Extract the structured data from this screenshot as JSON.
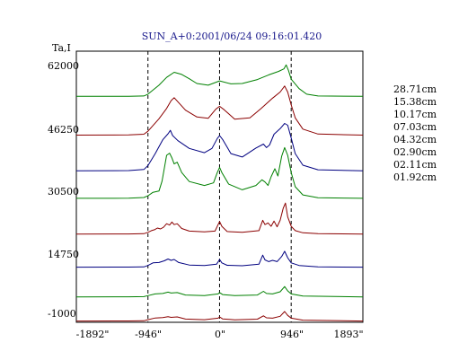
{
  "chart_data": {
    "type": "line",
    "title": "SUN_A+0:2001/06/24 09:16:01.420",
    "ylabel": "Ta,I",
    "xlabel": "",
    "x_ticks": [
      "-1892\"",
      "-946\"",
      "0\"",
      "946\"",
      "1893\""
    ],
    "y_ticks": [
      "62000",
      "46250",
      "30500",
      "14750",
      "-1000"
    ],
    "xlim": [
      -1892,
      1893
    ],
    "ylim": [
      -1000,
      62000
    ],
    "vertical_markers": [
      -946,
      0,
      946
    ],
    "grid": false,
    "legend_position": "right",
    "series": [
      {
        "name": "28.71cm",
        "color": "#008000",
        "baseline": 51500,
        "points": [
          [
            -1892,
            0
          ],
          [
            -1200,
            30
          ],
          [
            -1000,
            90
          ],
          [
            -946,
            500
          ],
          [
            -800,
            2600
          ],
          [
            -700,
            4400
          ],
          [
            -600,
            5600
          ],
          [
            -500,
            5100
          ],
          [
            -400,
            4100
          ],
          [
            -300,
            3000
          ],
          [
            -150,
            2600
          ],
          [
            0,
            3600
          ],
          [
            150,
            2900
          ],
          [
            300,
            3000
          ],
          [
            500,
            3900
          ],
          [
            650,
            5000
          ],
          [
            780,
            5800
          ],
          [
            850,
            6400
          ],
          [
            880,
            7300
          ],
          [
            910,
            6000
          ],
          [
            946,
            4000
          ],
          [
            1050,
            1800
          ],
          [
            1150,
            500
          ],
          [
            1300,
            100
          ],
          [
            1893,
            0
          ]
        ]
      },
      {
        "name": "15.38cm",
        "color": "#8b0000",
        "baseline": 42500,
        "points": [
          [
            -1892,
            0
          ],
          [
            -1200,
            40
          ],
          [
            -1000,
            200
          ],
          [
            -946,
            900
          ],
          [
            -800,
            3800
          ],
          [
            -700,
            6200
          ],
          [
            -640,
            8000
          ],
          [
            -600,
            8700
          ],
          [
            -560,
            7900
          ],
          [
            -450,
            5800
          ],
          [
            -300,
            4200
          ],
          [
            -150,
            3900
          ],
          [
            -50,
            6000
          ],
          [
            0,
            6700
          ],
          [
            60,
            5900
          ],
          [
            200,
            3700
          ],
          [
            400,
            4000
          ],
          [
            550,
            6200
          ],
          [
            700,
            8600
          ],
          [
            800,
            10000
          ],
          [
            860,
            11400
          ],
          [
            900,
            10000
          ],
          [
            946,
            7000
          ],
          [
            1000,
            4000
          ],
          [
            1100,
            1400
          ],
          [
            1300,
            250
          ],
          [
            1893,
            0
          ]
        ]
      },
      {
        "name": "10.17cm",
        "color": "#000080",
        "baseline": 34200,
        "points": [
          [
            -1892,
            0
          ],
          [
            -1200,
            50
          ],
          [
            -1000,
            300
          ],
          [
            -946,
            1200
          ],
          [
            -850,
            4000
          ],
          [
            -750,
            7200
          ],
          [
            -680,
            8600
          ],
          [
            -650,
            9400
          ],
          [
            -620,
            8200
          ],
          [
            -550,
            7000
          ],
          [
            -400,
            5200
          ],
          [
            -200,
            4200
          ],
          [
            -100,
            5200
          ],
          [
            -30,
            7500
          ],
          [
            0,
            8200
          ],
          [
            40,
            7300
          ],
          [
            150,
            4000
          ],
          [
            300,
            3200
          ],
          [
            480,
            5300
          ],
          [
            580,
            6200
          ],
          [
            620,
            5400
          ],
          [
            660,
            6000
          ],
          [
            720,
            8500
          ],
          [
            800,
            9800
          ],
          [
            860,
            11000
          ],
          [
            900,
            10600
          ],
          [
            946,
            7600
          ],
          [
            1000,
            4000
          ],
          [
            1100,
            1300
          ],
          [
            1300,
            250
          ],
          [
            1893,
            0
          ]
        ]
      },
      {
        "name": "07.03cm",
        "color": "#008000",
        "baseline": 27800,
        "points": [
          [
            -1892,
            0
          ],
          [
            -1200,
            40
          ],
          [
            -1000,
            200
          ],
          [
            -946,
            600
          ],
          [
            -880,
            1400
          ],
          [
            -800,
            1700
          ],
          [
            -760,
            4000
          ],
          [
            -700,
            10000
          ],
          [
            -660,
            10500
          ],
          [
            -630,
            9400
          ],
          [
            -600,
            8000
          ],
          [
            -560,
            8400
          ],
          [
            -500,
            6000
          ],
          [
            -400,
            3900
          ],
          [
            -200,
            3000
          ],
          [
            -80,
            3600
          ],
          [
            -30,
            6000
          ],
          [
            0,
            7200
          ],
          [
            30,
            6000
          ],
          [
            120,
            3300
          ],
          [
            300,
            2000
          ],
          [
            480,
            3000
          ],
          [
            560,
            4300
          ],
          [
            600,
            3800
          ],
          [
            640,
            3000
          ],
          [
            680,
            5000
          ],
          [
            730,
            6900
          ],
          [
            770,
            5200
          ],
          [
            820,
            9800
          ],
          [
            860,
            11800
          ],
          [
            900,
            10000
          ],
          [
            946,
            6000
          ],
          [
            1000,
            2700
          ],
          [
            1100,
            800
          ],
          [
            1300,
            150
          ],
          [
            1893,
            0
          ]
        ]
      },
      {
        "name": "04.32cm",
        "color": "#8b0000",
        "baseline": 19500,
        "points": [
          [
            -1892,
            0
          ],
          [
            -1200,
            30
          ],
          [
            -1000,
            100
          ],
          [
            -946,
            400
          ],
          [
            -900,
            800
          ],
          [
            -860,
            1000
          ],
          [
            -820,
            1400
          ],
          [
            -780,
            1200
          ],
          [
            -740,
            1600
          ],
          [
            -700,
            2400
          ],
          [
            -660,
            2100
          ],
          [
            -630,
            2800
          ],
          [
            -600,
            2200
          ],
          [
            -560,
            2400
          ],
          [
            -500,
            1300
          ],
          [
            -400,
            700
          ],
          [
            -200,
            500
          ],
          [
            -60,
            700
          ],
          [
            -20,
            2200
          ],
          [
            0,
            2900
          ],
          [
            30,
            1800
          ],
          [
            100,
            600
          ],
          [
            300,
            400
          ],
          [
            520,
            800
          ],
          [
            570,
            3200
          ],
          [
            600,
            2200
          ],
          [
            640,
            2600
          ],
          [
            680,
            1800
          ],
          [
            720,
            3000
          ],
          [
            760,
            1700
          ],
          [
            800,
            3200
          ],
          [
            840,
            6000
          ],
          [
            870,
            7200
          ],
          [
            900,
            4000
          ],
          [
            946,
            1800
          ],
          [
            1000,
            800
          ],
          [
            1100,
            300
          ],
          [
            1300,
            80
          ],
          [
            1893,
            0
          ]
        ]
      },
      {
        "name": "02.90cm",
        "color": "#000080",
        "baseline": 11800,
        "points": [
          [
            -1892,
            0
          ],
          [
            -1200,
            20
          ],
          [
            -1000,
            80
          ],
          [
            -946,
            400
          ],
          [
            -880,
            1000
          ],
          [
            -800,
            1100
          ],
          [
            -730,
            1500
          ],
          [
            -680,
            1900
          ],
          [
            -640,
            1600
          ],
          [
            -600,
            1800
          ],
          [
            -540,
            1100
          ],
          [
            -400,
            500
          ],
          [
            -200,
            380
          ],
          [
            -40,
            700
          ],
          [
            -10,
            1500
          ],
          [
            0,
            1800
          ],
          [
            30,
            1000
          ],
          [
            100,
            450
          ],
          [
            300,
            350
          ],
          [
            520,
            700
          ],
          [
            570,
            2800
          ],
          [
            600,
            1700
          ],
          [
            650,
            1300
          ],
          [
            700,
            1600
          ],
          [
            760,
            1300
          ],
          [
            820,
            2500
          ],
          [
            860,
            3700
          ],
          [
            900,
            2200
          ],
          [
            946,
            1000
          ],
          [
            1050,
            400
          ],
          [
            1300,
            80
          ],
          [
            1893,
            0
          ]
        ]
      },
      {
        "name": "02.11cm",
        "color": "#008000",
        "baseline": 4900,
        "points": [
          [
            -1892,
            0
          ],
          [
            -1200,
            20
          ],
          [
            -1000,
            60
          ],
          [
            -946,
            300
          ],
          [
            -850,
            700
          ],
          [
            -750,
            800
          ],
          [
            -680,
            1100
          ],
          [
            -640,
            900
          ],
          [
            -560,
            1000
          ],
          [
            -450,
            450
          ],
          [
            -200,
            300
          ],
          [
            -20,
            700
          ],
          [
            0,
            1000
          ],
          [
            40,
            550
          ],
          [
            200,
            300
          ],
          [
            500,
            450
          ],
          [
            580,
            1300
          ],
          [
            620,
            800
          ],
          [
            700,
            700
          ],
          [
            800,
            1200
          ],
          [
            860,
            2400
          ],
          [
            900,
            1400
          ],
          [
            946,
            700
          ],
          [
            1100,
            200
          ],
          [
            1893,
            0
          ]
        ]
      },
      {
        "name": "01.92cm",
        "color": "#8b0000",
        "baseline": -700,
        "points": [
          [
            -1892,
            0
          ],
          [
            -1200,
            20
          ],
          [
            -1000,
            60
          ],
          [
            -946,
            300
          ],
          [
            -850,
            700
          ],
          [
            -750,
            800
          ],
          [
            -680,
            1000
          ],
          [
            -640,
            850
          ],
          [
            -560,
            950
          ],
          [
            -450,
            450
          ],
          [
            -200,
            300
          ],
          [
            -20,
            650
          ],
          [
            0,
            950
          ],
          [
            40,
            500
          ],
          [
            200,
            280
          ],
          [
            500,
            420
          ],
          [
            580,
            1200
          ],
          [
            620,
            750
          ],
          [
            700,
            650
          ],
          [
            800,
            1100
          ],
          [
            860,
            2200
          ],
          [
            900,
            1300
          ],
          [
            946,
            650
          ],
          [
            1100,
            200
          ],
          [
            1893,
            0
          ]
        ]
      }
    ]
  }
}
